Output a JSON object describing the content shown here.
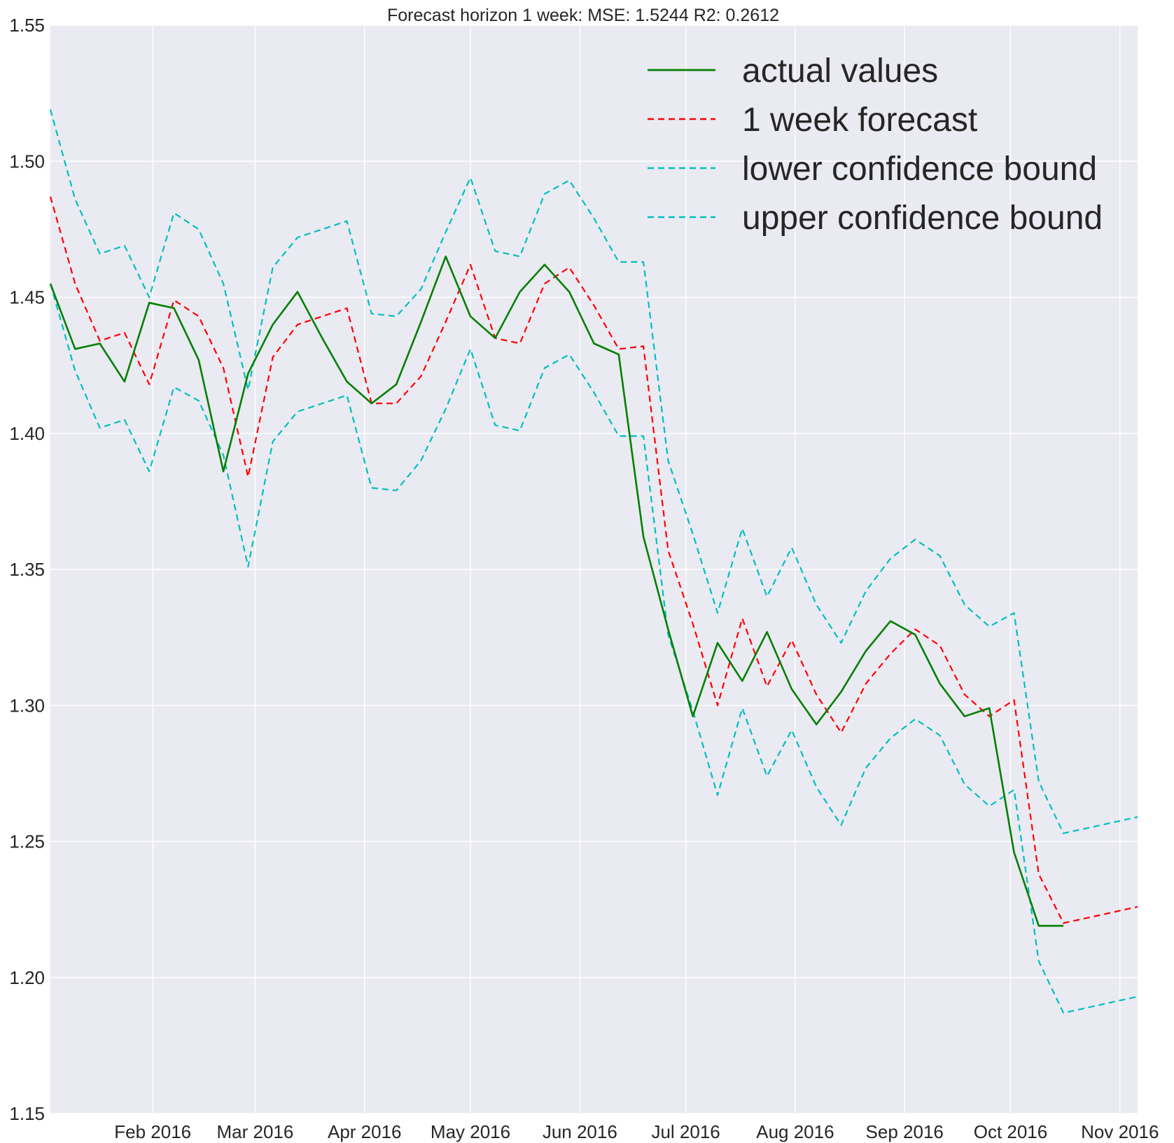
{
  "chart_data": {
    "type": "line",
    "title": "Forecast horizon 1 week:  MSE: 1.5244  R2: 0.2612",
    "xlabel": "",
    "ylabel": "",
    "ylim": [
      1.15,
      1.55
    ],
    "xlim": [
      "2016-01-03",
      "2016-11-06"
    ],
    "yticks": [
      "1.15",
      "1.20",
      "1.25",
      "1.30",
      "1.35",
      "1.40",
      "1.45",
      "1.50",
      "1.55"
    ],
    "xticks": [
      {
        "date": "2016-02-01",
        "label": "Feb 2016"
      },
      {
        "date": "2016-03-01",
        "label": "Mar 2016"
      },
      {
        "date": "2016-04-01",
        "label": "Apr 2016"
      },
      {
        "date": "2016-05-01",
        "label": "May 2016"
      },
      {
        "date": "2016-06-01",
        "label": "Jun 2016"
      },
      {
        "date": "2016-07-01",
        "label": "Jul 2016"
      },
      {
        "date": "2016-08-01",
        "label": "Aug 2016"
      },
      {
        "date": "2016-09-01",
        "label": "Sep 2016"
      },
      {
        "date": "2016-10-01",
        "label": "Oct 2016"
      },
      {
        "date": "2016-11-01",
        "label": "Nov 2016"
      }
    ],
    "grid": true,
    "legend_position": "top-right",
    "x": [
      "2016-01-03",
      "2016-01-10",
      "2016-01-17",
      "2016-01-24",
      "2016-01-31",
      "2016-02-07",
      "2016-02-14",
      "2016-02-21",
      "2016-02-28",
      "2016-03-06",
      "2016-03-13",
      "2016-03-20",
      "2016-03-27",
      "2016-04-03",
      "2016-04-10",
      "2016-04-17",
      "2016-04-24",
      "2016-05-01",
      "2016-05-08",
      "2016-05-15",
      "2016-05-22",
      "2016-05-29",
      "2016-06-05",
      "2016-06-12",
      "2016-06-19",
      "2016-06-26",
      "2016-07-03",
      "2016-07-10",
      "2016-07-17",
      "2016-07-24",
      "2016-07-31",
      "2016-08-07",
      "2016-08-14",
      "2016-08-21",
      "2016-08-28",
      "2016-09-04",
      "2016-09-11",
      "2016-09-18",
      "2016-09-25",
      "2016-10-02",
      "2016-10-09",
      "2016-10-16",
      "2016-10-23",
      "2016-10-30",
      "2016-11-06"
    ],
    "series": [
      {
        "name": "actual values",
        "color": "#008000",
        "style": "solid",
        "values": [
          1.455,
          1.431,
          1.433,
          1.419,
          1.448,
          1.446,
          1.427,
          1.386,
          1.422,
          1.44,
          1.452,
          1.435,
          1.419,
          1.411,
          1.418,
          1.441,
          1.465,
          1.443,
          1.435,
          1.452,
          1.462,
          1.452,
          1.433,
          1.429,
          1.362,
          1.328,
          1.296,
          1.323,
          1.309,
          1.327,
          1.306,
          1.293,
          1.305,
          1.32,
          1.331,
          1.326,
          1.308,
          1.296,
          1.299,
          1.246,
          1.219,
          1.219,
          null,
          null,
          null
        ]
      },
      {
        "name": "1 week forecast",
        "color": "#ff0000",
        "style": "dashed",
        "values": [
          1.487,
          1.455,
          1.434,
          1.437,
          1.418,
          1.449,
          1.443,
          1.424,
          1.384,
          1.428,
          1.44,
          1.443,
          1.446,
          1.411,
          1.411,
          1.421,
          1.441,
          1.462,
          1.435,
          1.433,
          1.455,
          1.461,
          1.447,
          1.431,
          1.432,
          1.357,
          1.33,
          1.3,
          1.332,
          1.307,
          1.324,
          1.304,
          1.29,
          1.308,
          1.319,
          1.328,
          1.322,
          1.304,
          1.296,
          1.302,
          1.238,
          1.22,
          1.222,
          1.224,
          1.226
        ]
      },
      {
        "name": "lower confidence bound",
        "color": "#00bfbf",
        "style": "dashed",
        "values": [
          1.455,
          1.423,
          1.402,
          1.405,
          1.386,
          1.417,
          1.412,
          1.392,
          1.351,
          1.397,
          1.408,
          1.411,
          1.414,
          1.38,
          1.379,
          1.39,
          1.409,
          1.431,
          1.403,
          1.401,
          1.424,
          1.429,
          1.415,
          1.399,
          1.399,
          1.326,
          1.298,
          1.267,
          1.299,
          1.274,
          1.291,
          1.27,
          1.256,
          1.277,
          1.288,
          1.295,
          1.289,
          1.271,
          1.263,
          1.269,
          1.206,
          1.187,
          1.189,
          1.191,
          1.193
        ]
      },
      {
        "name": "upper confidence bound",
        "color": "#00bfbf",
        "style": "dashed",
        "values": [
          1.519,
          1.486,
          1.466,
          1.469,
          1.45,
          1.481,
          1.475,
          1.455,
          1.416,
          1.461,
          1.472,
          1.475,
          1.478,
          1.444,
          1.443,
          1.453,
          1.474,
          1.494,
          1.467,
          1.465,
          1.488,
          1.493,
          1.479,
          1.463,
          1.463,
          1.39,
          1.363,
          1.334,
          1.365,
          1.34,
          1.358,
          1.337,
          1.323,
          1.342,
          1.354,
          1.361,
          1.355,
          1.337,
          1.329,
          1.334,
          1.272,
          1.253,
          1.255,
          1.257,
          1.259
        ]
      }
    ]
  }
}
